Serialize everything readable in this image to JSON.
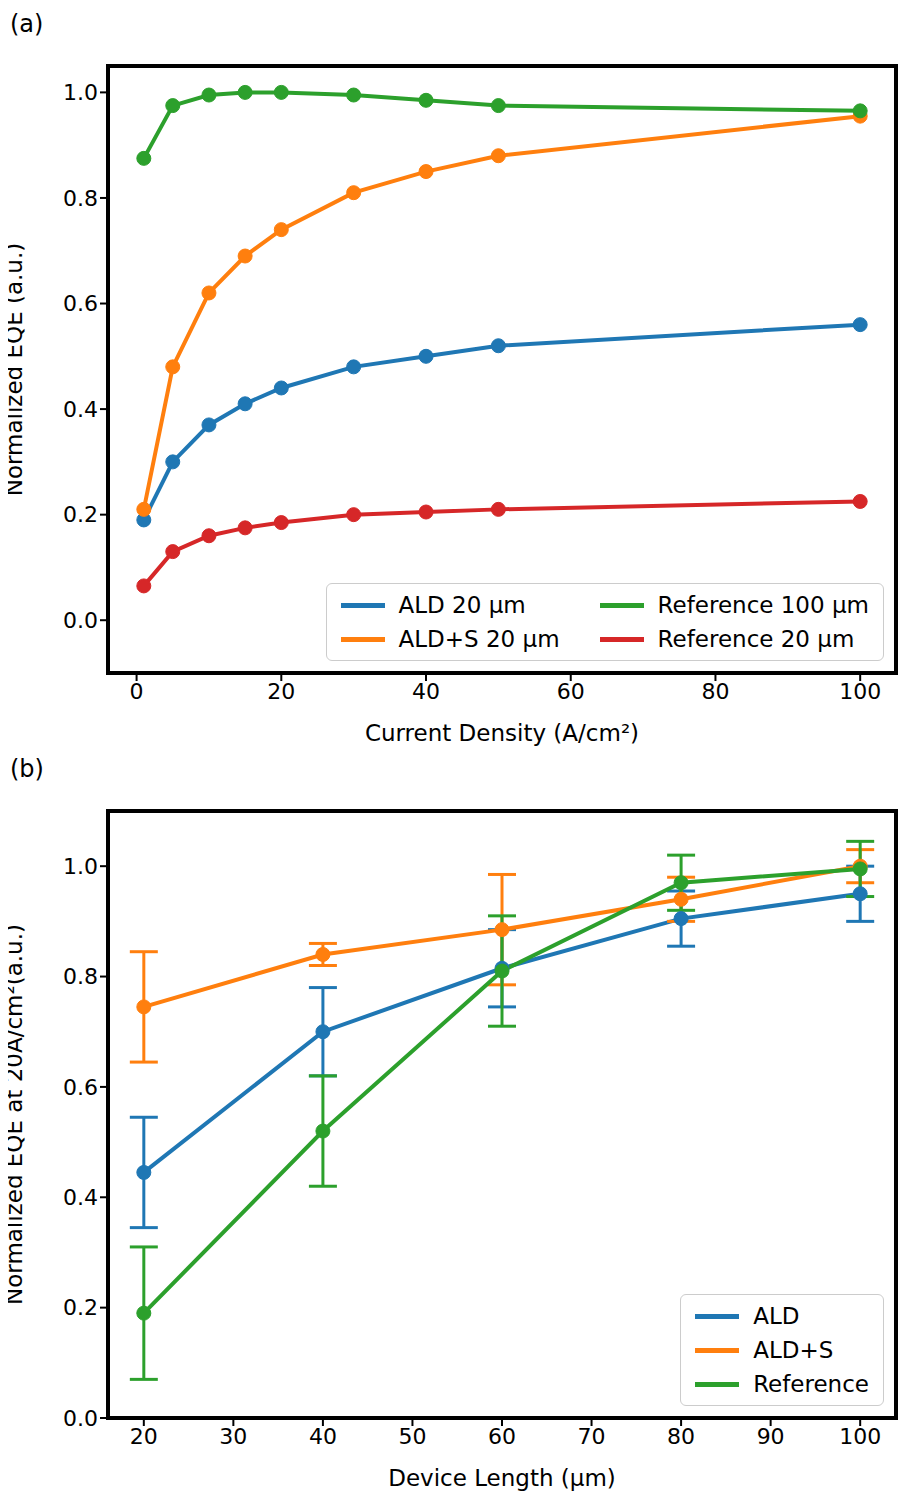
{
  "chart_data": [
    {
      "type": "line",
      "title": "(a)",
      "x_label": "Current Density (A/cm²)",
      "y_label": "Normalized EQE (a.u.)",
      "x": [
        1,
        5,
        10,
        15,
        20,
        30,
        40,
        50,
        100
      ],
      "xlim": [
        -3.95,
        104.95
      ],
      "xticks": [
        0,
        20,
        40,
        60,
        80,
        100
      ],
      "ylim": [
        -0.1,
        1.05
      ],
      "yticks": [
        {
          "value": 0,
          "label": "0.0"
        },
        0.2,
        0.4,
        0.6,
        0.8,
        {
          "value": 1,
          "label": "1.0"
        }
      ],
      "grid": false,
      "legend": "lower right",
      "marker": "circle",
      "series": [
        {
          "name": "ALD 20 µm",
          "color": "#1f77b4",
          "values": [
            0.19,
            0.3,
            0.37,
            0.41,
            0.44,
            0.48,
            0.5,
            0.52,
            0.56
          ]
        },
        {
          "name": "ALD+S 20 µm",
          "color": "#ff7f0e",
          "values": [
            0.21,
            0.48,
            0.62,
            0.69,
            0.74,
            0.81,
            0.85,
            0.88,
            0.955
          ]
        },
        {
          "name": "Reference 100 µm",
          "color": "#2ca02c",
          "values": [
            0.875,
            0.975,
            0.995,
            1.0,
            1.0,
            0.995,
            0.985,
            0.975,
            0.965
          ]
        },
        {
          "name": "Reference 20 µm",
          "color": "#d62728",
          "values": [
            0.065,
            0.13,
            0.16,
            0.175,
            0.185,
            0.2,
            0.205,
            0.21,
            0.225
          ]
        }
      ]
    },
    {
      "type": "line",
      "title": "(b)",
      "x_label": "Device Length (µm)",
      "y_label": "Normalized EQE at 20A/cm²(a.u.)",
      "x": [
        20,
        40,
        60,
        80,
        100
      ],
      "xlim": [
        16,
        104
      ],
      "xticks": [
        20,
        30,
        40,
        50,
        60,
        70,
        80,
        90,
        100
      ],
      "ylim": [
        0,
        1.1
      ],
      "yticks": [
        {
          "value": 0,
          "label": "0.0"
        },
        0.2,
        0.4,
        0.6,
        0.8,
        {
          "value": 1,
          "label": "1.0"
        }
      ],
      "grid": false,
      "legend": "lower right",
      "marker": "circle",
      "series": [
        {
          "name": "ALD",
          "color": "#1f77b4",
          "values": [
            0.445,
            0.7,
            0.815,
            0.905,
            0.95
          ],
          "errors": [
            0.1,
            0.08,
            0.07,
            0.05,
            0.05
          ]
        },
        {
          "name": "ALD+S",
          "color": "#ff7f0e",
          "values": [
            0.745,
            0.84,
            0.885,
            0.94,
            1.0
          ],
          "errors": [
            0.1,
            0.02,
            0.1,
            0.04,
            0.03
          ]
        },
        {
          "name": "Reference",
          "color": "#2ca02c",
          "values": [
            0.19,
            0.52,
            0.81,
            0.97,
            0.995
          ],
          "errors": [
            0.12,
            0.1,
            0.1,
            0.05,
            0.05
          ]
        }
      ]
    }
  ]
}
